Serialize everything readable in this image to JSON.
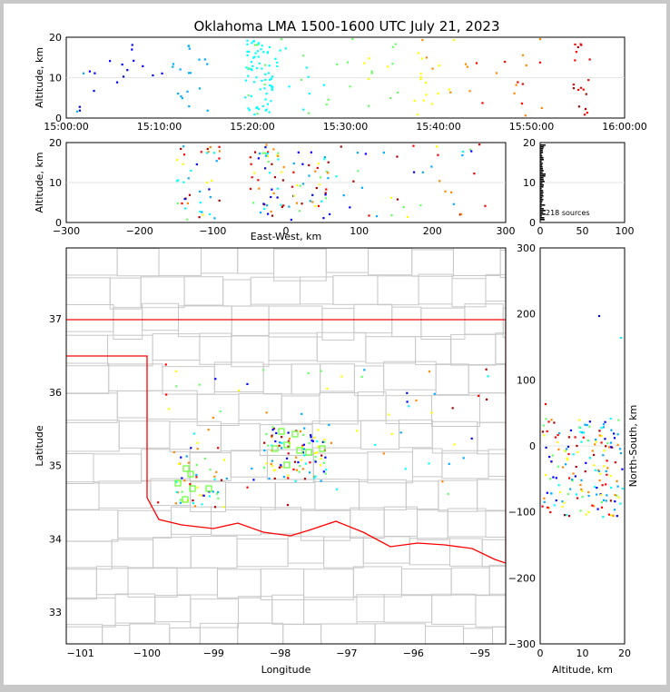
{
  "title": "Oklahoma LMA 1500-1600 UTC July 21, 2023",
  "chart_data": [
    {
      "type": "scatter",
      "panel": "time-height",
      "xlabel": "",
      "ylabel": "Altitude, km",
      "x_ticks": [
        "15:00:00",
        "15:10:00",
        "15:20:00",
        "15:30:00",
        "15:40:00",
        "15:50:00",
        "16:00:00"
      ],
      "y_ticks": [
        "0",
        "10",
        "20"
      ],
      "xlim_minutes": [
        0,
        60
      ],
      "ylim": [
        0,
        20
      ]
    },
    {
      "type": "scatter",
      "panel": "east-west-altitude",
      "xlabel": "East-West, km",
      "ylabel": "Altitude, km",
      "x_ticks": [
        "−300",
        "−200",
        "−100",
        "0",
        "100",
        "200",
        "300"
      ],
      "y_ticks": [
        "0",
        "10",
        "20"
      ],
      "xlim": [
        -300,
        300
      ],
      "ylim": [
        0,
        20
      ]
    },
    {
      "type": "histogram",
      "panel": "altitude-histogram",
      "x_ticks": [
        "0",
        "50",
        "100"
      ],
      "y_ticks": [
        "0",
        "10",
        "20"
      ],
      "xlim": [
        0,
        100
      ],
      "ylim": [
        0,
        20
      ],
      "annotation": "218 sources"
    },
    {
      "type": "scatter",
      "panel": "plan-view",
      "xlabel": "Longitude",
      "ylabel": "Latitude",
      "x_ticks": [
        "−101",
        "−100",
        "−99",
        "−98",
        "−97",
        "−96",
        "−95"
      ],
      "y_ticks": [
        "33",
        "34",
        "35",
        "36",
        "37"
      ],
      "xlim": [
        -101.2,
        -94.6
      ],
      "ylim": [
        32.6,
        38
      ],
      "station_markers": "green squares"
    },
    {
      "type": "scatter",
      "panel": "altitude-north-south",
      "xlabel": "Altitude, km",
      "ylabel": "North-South, km",
      "x_ticks": [
        "0",
        "10",
        "20"
      ],
      "y_ticks": [
        "−300",
        "−200",
        "−100",
        "0",
        "100",
        "200",
        "300"
      ],
      "xlim": [
        0,
        20
      ],
      "ylim": [
        -300,
        300
      ]
    }
  ],
  "colors": {
    "boundary": "#ff0000",
    "counties": "#c8c8c8",
    "stations": "#66ff33",
    "time_scale": [
      "#0000ff",
      "#00aaff",
      "#00ffff",
      "#66ff66",
      "#ffff00",
      "#ff8800",
      "#ff0000",
      "#aa0000"
    ]
  }
}
